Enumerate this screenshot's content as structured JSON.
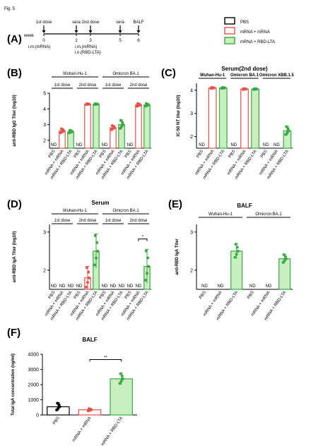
{
  "figure_label": "Fig. 5",
  "panel_letters": [
    "(A)",
    "(B)",
    "(C)",
    "(D)",
    "(E)",
    "(F)"
  ],
  "timeline": {
    "week_label": "week",
    "weeks": [
      "0",
      "2",
      "3",
      "5",
      "6"
    ],
    "events": [
      "1st dose",
      "sera",
      "2nd dose",
      "sera",
      "BALF"
    ],
    "route_0": "i.m.(mRNA)",
    "route_3a": "i.m.(mRNA)",
    "route_3b": "i.n.(RBD-LTA)"
  },
  "legend": {
    "entries": [
      {
        "label": "PBS",
        "color": "#000000",
        "fill": "#ffffff"
      },
      {
        "label": "mRNA + mRNA",
        "color": "#e8504a",
        "fill": "#ffffff"
      },
      {
        "label": "mRNA + RBD-LTA",
        "color": "#3aa845",
        "fill": "#c9efc0"
      }
    ]
  },
  "colors": {
    "pbs": "#000000",
    "mrna": "#e8504a",
    "lta": "#3aa845",
    "lta_fill": "#c9efc0"
  },
  "chart_data": [
    {
      "id": "B",
      "type": "bar",
      "title": "",
      "ylabel": "anti-RBD IgG Titer (log10)",
      "ylim": [
        1.5,
        5
      ],
      "yticks": [
        2,
        3,
        4,
        5
      ],
      "groups": [
        "Wuhan-Hu-1",
        "Omicron BA.1"
      ],
      "subgroups": [
        "1st dose",
        "2nd dose",
        "1st dose",
        "2nd dose"
      ],
      "categories": [
        "PBS",
        "mRNA + mRNA",
        "mRNA + RBD-LTA",
        "PBS",
        "mRNA + mRNA",
        "mRNA + RBD-LTA",
        "PBS",
        "mRNA + mRNA",
        "mRNA + RBD-LTA",
        "PBS",
        "mRNA + mRNA",
        "mRNA + RBD-LTA"
      ],
      "values": [
        null,
        2.6,
        2.55,
        null,
        4.3,
        4.3,
        null,
        2.8,
        3.0,
        null,
        4.25,
        4.25
      ],
      "errors": [
        0,
        0.15,
        0.1,
        0,
        0.03,
        0.03,
        0,
        0.15,
        0.3,
        0,
        0.1,
        0.1
      ],
      "nd_label": "ND"
    },
    {
      "id": "C",
      "type": "bar",
      "title": "Serum(2nd dose)",
      "ylabel": "IC-50 NT titer (log10)",
      "ylim": [
        1.5,
        4.3
      ],
      "yticks": [
        2,
        3,
        4
      ],
      "groups": [
        "Wuhan-Hu-1",
        "Omicron BA.1",
        "Omicron XBB.1.5"
      ],
      "categories": [
        "PBS",
        "mRNA + mRNA",
        "mRNA + RBD-LTA",
        "PBS",
        "mRNA + mRNA",
        "mRNA + RBD-LTA",
        "PBS",
        "mRNA + mRNA",
        "mRNA + RBD-LTA"
      ],
      "values": [
        null,
        4.1,
        4.1,
        null,
        4.05,
        4.05,
        null,
        null,
        2.25
      ],
      "errors": [
        0,
        0.02,
        0.02,
        0,
        0.02,
        0.02,
        0,
        0,
        0.2
      ],
      "nd_label": "ND"
    },
    {
      "id": "D",
      "type": "bar",
      "title": "Serum",
      "ylabel": "anti-RBD IgA Titer (log10)",
      "ylim": [
        1.5,
        3.2
      ],
      "yticks": [
        2,
        3
      ],
      "groups": [
        "Wuhan-Hu-1",
        "Omicron BA.1"
      ],
      "subgroups": [
        "1st dose",
        "2nd dose",
        "1st dose",
        "2nd dose"
      ],
      "categories": [
        "PBS",
        "mRNA + mRNA",
        "mRNA + RBD-LTA",
        "PBS",
        "mRNA + mRNA",
        "mRNA + RBD-LTA",
        "PBS",
        "mRNA + mRNA",
        "mRNA + RBD-LTA",
        "PBS",
        "mRNA + mRNA",
        "mRNA + RBD-LTA"
      ],
      "values": [
        null,
        null,
        null,
        null,
        1.8,
        2.5,
        null,
        null,
        null,
        null,
        null,
        2.1
      ],
      "errors": [
        0,
        0,
        0,
        0,
        0.3,
        0.45,
        0,
        0,
        0,
        0,
        0,
        0.45
      ],
      "nd_label": "ND",
      "annotation": "*"
    },
    {
      "id": "E",
      "type": "bar",
      "title": "BALF",
      "ylabel": "anti-RBD IgA Titer",
      "ylim": [
        1.5,
        3.2
      ],
      "yticks": [
        2,
        3
      ],
      "groups": [
        "Wuhan-Hu-1",
        "Omicron BA.1"
      ],
      "categories": [
        "PBS",
        "mRNA + mRNA",
        "mRNA + RBD-LTA",
        "PBS",
        "mRNA + mRNA",
        "mRNA + RBD-LTA"
      ],
      "values": [
        null,
        null,
        2.5,
        null,
        null,
        2.3
      ],
      "errors": [
        0,
        0,
        0.2,
        0,
        0,
        0.12
      ],
      "nd_label": "ND"
    },
    {
      "id": "F",
      "type": "bar",
      "title": "BALF",
      "ylabel": "Total IgA concentration (ng/ml)",
      "ylim": [
        0,
        4000
      ],
      "yticks": [
        0,
        1000,
        2000,
        3000,
        4000
      ],
      "categories": [
        "PBS",
        "mRNA + mRNA",
        "mRNA + RBD-LTA"
      ],
      "values": [
        540,
        340,
        2380
      ],
      "errors": [
        260,
        80,
        380
      ],
      "annotation": "**"
    }
  ]
}
